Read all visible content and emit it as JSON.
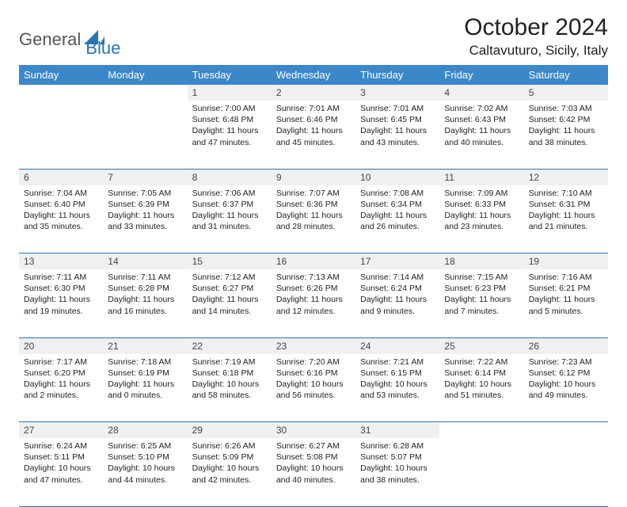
{
  "brand": {
    "part1": "General",
    "part2": "Blue"
  },
  "title": "October 2024",
  "location": "Caltavuturo, Sicily, Italy",
  "colors": {
    "header_bg": "#3b87c8",
    "border": "#2a73b8",
    "daynum_bg": "#eef0f2",
    "logo_dark": "#555555",
    "logo_blue": "#2a73b8"
  },
  "weekdays": [
    "Sunday",
    "Monday",
    "Tuesday",
    "Wednesday",
    "Thursday",
    "Friday",
    "Saturday"
  ],
  "weeks": [
    [
      null,
      null,
      {
        "n": "1",
        "sunrise": "Sunrise: 7:00 AM",
        "sunset": "Sunset: 6:48 PM",
        "daylight": "Daylight: 11 hours and 47 minutes."
      },
      {
        "n": "2",
        "sunrise": "Sunrise: 7:01 AM",
        "sunset": "Sunset: 6:46 PM",
        "daylight": "Daylight: 11 hours and 45 minutes."
      },
      {
        "n": "3",
        "sunrise": "Sunrise: 7:01 AM",
        "sunset": "Sunset: 6:45 PM",
        "daylight": "Daylight: 11 hours and 43 minutes."
      },
      {
        "n": "4",
        "sunrise": "Sunrise: 7:02 AM",
        "sunset": "Sunset: 6:43 PM",
        "daylight": "Daylight: 11 hours and 40 minutes."
      },
      {
        "n": "5",
        "sunrise": "Sunrise: 7:03 AM",
        "sunset": "Sunset: 6:42 PM",
        "daylight": "Daylight: 11 hours and 38 minutes."
      }
    ],
    [
      {
        "n": "6",
        "sunrise": "Sunrise: 7:04 AM",
        "sunset": "Sunset: 6:40 PM",
        "daylight": "Daylight: 11 hours and 35 minutes."
      },
      {
        "n": "7",
        "sunrise": "Sunrise: 7:05 AM",
        "sunset": "Sunset: 6:39 PM",
        "daylight": "Daylight: 11 hours and 33 minutes."
      },
      {
        "n": "8",
        "sunrise": "Sunrise: 7:06 AM",
        "sunset": "Sunset: 6:37 PM",
        "daylight": "Daylight: 11 hours and 31 minutes."
      },
      {
        "n": "9",
        "sunrise": "Sunrise: 7:07 AM",
        "sunset": "Sunset: 6:36 PM",
        "daylight": "Daylight: 11 hours and 28 minutes."
      },
      {
        "n": "10",
        "sunrise": "Sunrise: 7:08 AM",
        "sunset": "Sunset: 6:34 PM",
        "daylight": "Daylight: 11 hours and 26 minutes."
      },
      {
        "n": "11",
        "sunrise": "Sunrise: 7:09 AM",
        "sunset": "Sunset: 6:33 PM",
        "daylight": "Daylight: 11 hours and 23 minutes."
      },
      {
        "n": "12",
        "sunrise": "Sunrise: 7:10 AM",
        "sunset": "Sunset: 6:31 PM",
        "daylight": "Daylight: 11 hours and 21 minutes."
      }
    ],
    [
      {
        "n": "13",
        "sunrise": "Sunrise: 7:11 AM",
        "sunset": "Sunset: 6:30 PM",
        "daylight": "Daylight: 11 hours and 19 minutes."
      },
      {
        "n": "14",
        "sunrise": "Sunrise: 7:11 AM",
        "sunset": "Sunset: 6:28 PM",
        "daylight": "Daylight: 11 hours and 16 minutes."
      },
      {
        "n": "15",
        "sunrise": "Sunrise: 7:12 AM",
        "sunset": "Sunset: 6:27 PM",
        "daylight": "Daylight: 11 hours and 14 minutes."
      },
      {
        "n": "16",
        "sunrise": "Sunrise: 7:13 AM",
        "sunset": "Sunset: 6:26 PM",
        "daylight": "Daylight: 11 hours and 12 minutes."
      },
      {
        "n": "17",
        "sunrise": "Sunrise: 7:14 AM",
        "sunset": "Sunset: 6:24 PM",
        "daylight": "Daylight: 11 hours and 9 minutes."
      },
      {
        "n": "18",
        "sunrise": "Sunrise: 7:15 AM",
        "sunset": "Sunset: 6:23 PM",
        "daylight": "Daylight: 11 hours and 7 minutes."
      },
      {
        "n": "19",
        "sunrise": "Sunrise: 7:16 AM",
        "sunset": "Sunset: 6:21 PM",
        "daylight": "Daylight: 11 hours and 5 minutes."
      }
    ],
    [
      {
        "n": "20",
        "sunrise": "Sunrise: 7:17 AM",
        "sunset": "Sunset: 6:20 PM",
        "daylight": "Daylight: 11 hours and 2 minutes."
      },
      {
        "n": "21",
        "sunrise": "Sunrise: 7:18 AM",
        "sunset": "Sunset: 6:19 PM",
        "daylight": "Daylight: 11 hours and 0 minutes."
      },
      {
        "n": "22",
        "sunrise": "Sunrise: 7:19 AM",
        "sunset": "Sunset: 6:18 PM",
        "daylight": "Daylight: 10 hours and 58 minutes."
      },
      {
        "n": "23",
        "sunrise": "Sunrise: 7:20 AM",
        "sunset": "Sunset: 6:16 PM",
        "daylight": "Daylight: 10 hours and 56 minutes."
      },
      {
        "n": "24",
        "sunrise": "Sunrise: 7:21 AM",
        "sunset": "Sunset: 6:15 PM",
        "daylight": "Daylight: 10 hours and 53 minutes."
      },
      {
        "n": "25",
        "sunrise": "Sunrise: 7:22 AM",
        "sunset": "Sunset: 6:14 PM",
        "daylight": "Daylight: 10 hours and 51 minutes."
      },
      {
        "n": "26",
        "sunrise": "Sunrise: 7:23 AM",
        "sunset": "Sunset: 6:12 PM",
        "daylight": "Daylight: 10 hours and 49 minutes."
      }
    ],
    [
      {
        "n": "27",
        "sunrise": "Sunrise: 6:24 AM",
        "sunset": "Sunset: 5:11 PM",
        "daylight": "Daylight: 10 hours and 47 minutes."
      },
      {
        "n": "28",
        "sunrise": "Sunrise: 6:25 AM",
        "sunset": "Sunset: 5:10 PM",
        "daylight": "Daylight: 10 hours and 44 minutes."
      },
      {
        "n": "29",
        "sunrise": "Sunrise: 6:26 AM",
        "sunset": "Sunset: 5:09 PM",
        "daylight": "Daylight: 10 hours and 42 minutes."
      },
      {
        "n": "30",
        "sunrise": "Sunrise: 6:27 AM",
        "sunset": "Sunset: 5:08 PM",
        "daylight": "Daylight: 10 hours and 40 minutes."
      },
      {
        "n": "31",
        "sunrise": "Sunrise: 6:28 AM",
        "sunset": "Sunset: 5:07 PM",
        "daylight": "Daylight: 10 hours and 38 minutes."
      },
      null,
      null
    ]
  ]
}
